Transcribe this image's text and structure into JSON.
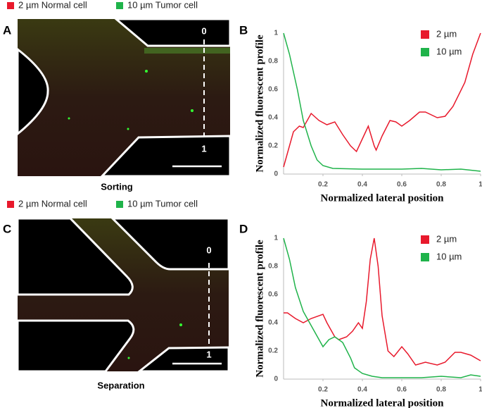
{
  "panels": {
    "labels": [
      "A",
      "B",
      "C",
      "D"
    ]
  },
  "images": [
    {
      "legend": [
        {
          "label": "2 µm Normal cell",
          "color": "#e8192c"
        },
        {
          "label": "10 µm Tumor cell",
          "color": "#1fb34a"
        }
      ],
      "caption": "Sorting",
      "marker_top": "0",
      "marker_bottom": "1"
    },
    {
      "legend": [
        {
          "label": "2 µm Normal cell",
          "color": "#e8192c"
        },
        {
          "label": "10 µm Tumor cell",
          "color": "#1fb34a"
        }
      ],
      "caption": "Separation",
      "marker_top": "0",
      "marker_bottom": "1"
    }
  ],
  "chart_data": [
    {
      "type": "line",
      "xlabel": "Normalized lateral position",
      "ylabel": "Normalized fluorescent profile",
      "xlim": [
        0,
        1
      ],
      "ylim": [
        0,
        1
      ],
      "xticks": [
        0.2,
        0.4,
        0.6,
        0.8,
        1
      ],
      "yticks": [
        0,
        0.2,
        0.4,
        0.6,
        0.8,
        1
      ],
      "series": [
        {
          "name": "2 µm",
          "color": "#e8192c",
          "x": [
            0,
            0.05,
            0.08,
            0.1,
            0.14,
            0.18,
            0.22,
            0.26,
            0.3,
            0.34,
            0.37,
            0.4,
            0.43,
            0.46,
            0.47,
            0.5,
            0.54,
            0.57,
            0.6,
            0.64,
            0.69,
            0.72,
            0.78,
            0.82,
            0.86,
            0.92,
            0.96,
            1
          ],
          "values": [
            0.05,
            0.3,
            0.34,
            0.33,
            0.43,
            0.38,
            0.35,
            0.37,
            0.28,
            0.2,
            0.16,
            0.25,
            0.34,
            0.2,
            0.17,
            0.27,
            0.38,
            0.37,
            0.34,
            0.38,
            0.44,
            0.44,
            0.4,
            0.41,
            0.48,
            0.65,
            0.85,
            1
          ]
        },
        {
          "name": "10 µm",
          "color": "#1fb34a",
          "x": [
            0,
            0.03,
            0.07,
            0.1,
            0.14,
            0.17,
            0.2,
            0.25,
            0.4,
            0.6,
            0.7,
            0.8,
            0.9,
            1
          ],
          "values": [
            1,
            0.85,
            0.6,
            0.38,
            0.2,
            0.1,
            0.06,
            0.04,
            0.035,
            0.035,
            0.04,
            0.03,
            0.035,
            0.02
          ]
        }
      ]
    },
    {
      "type": "line",
      "xlabel": "Normalized lateral position",
      "ylabel": "Normalized fluorescent profile",
      "xlim": [
        0,
        1
      ],
      "ylim": [
        0,
        1
      ],
      "xticks": [
        0.2,
        0.4,
        0.6,
        0.8,
        1
      ],
      "yticks": [
        0,
        0.2,
        0.4,
        0.6,
        0.8,
        1
      ],
      "series": [
        {
          "name": "2 µm",
          "color": "#e8192c",
          "x": [
            0,
            0.02,
            0.06,
            0.1,
            0.14,
            0.2,
            0.22,
            0.26,
            0.28,
            0.32,
            0.35,
            0.38,
            0.4,
            0.42,
            0.44,
            0.46,
            0.48,
            0.5,
            0.53,
            0.56,
            0.6,
            0.63,
            0.67,
            0.72,
            0.78,
            0.82,
            0.87,
            0.9,
            0.95,
            1
          ],
          "values": [
            0.47,
            0.47,
            0.43,
            0.4,
            0.43,
            0.46,
            0.4,
            0.3,
            0.28,
            0.3,
            0.34,
            0.4,
            0.36,
            0.55,
            0.85,
            1,
            0.8,
            0.45,
            0.2,
            0.16,
            0.23,
            0.18,
            0.1,
            0.12,
            0.1,
            0.12,
            0.19,
            0.19,
            0.17,
            0.13
          ]
        },
        {
          "name": "10 µm",
          "color": "#1fb34a",
          "x": [
            0,
            0.03,
            0.06,
            0.1,
            0.14,
            0.18,
            0.2,
            0.23,
            0.26,
            0.3,
            0.34,
            0.36,
            0.4,
            0.45,
            0.5,
            0.7,
            0.8,
            0.9,
            0.95,
            1
          ],
          "values": [
            1,
            0.85,
            0.65,
            0.48,
            0.38,
            0.28,
            0.23,
            0.28,
            0.3,
            0.26,
            0.15,
            0.08,
            0.04,
            0.02,
            0.01,
            0.01,
            0.02,
            0.01,
            0.03,
            0.02
          ]
        }
      ]
    }
  ]
}
